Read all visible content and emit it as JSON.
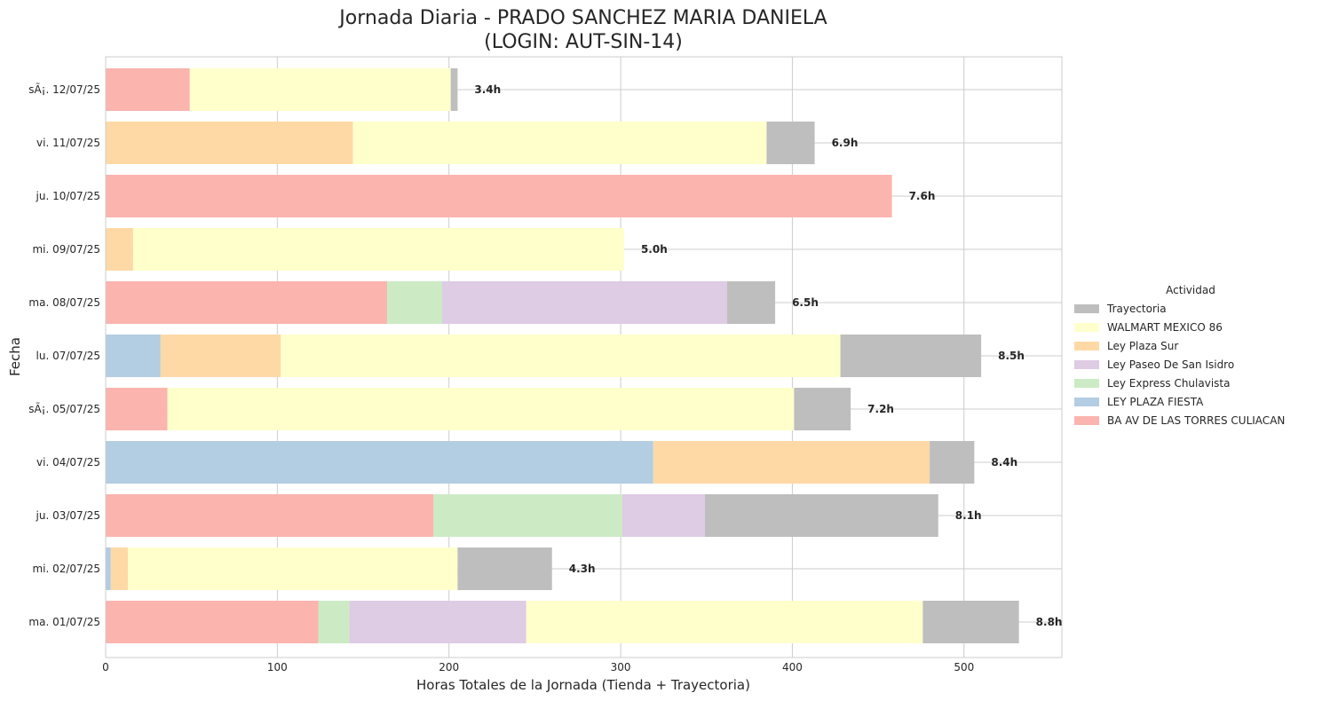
{
  "chart_data": {
    "type": "bar",
    "orientation": "horizontal",
    "stacked": true,
    "title_line1": "Jornada Diaria - PRADO SANCHEZ MARIA DANIELA",
    "title_line2": "(LOGIN: AUT-SIN-14)",
    "xlabel": "Horas Totales de la Jornada (Tienda + Trayectoria)",
    "ylabel": "Fecha",
    "xlim": [
      0,
      557
    ],
    "xticks": [
      0,
      100,
      200,
      300,
      400,
      500
    ],
    "grid": true,
    "legend_position": "right",
    "legend_title": "Actividad",
    "categories": [
      "ma. 01/07/25",
      "mi. 02/07/25",
      "ju. 03/07/25",
      "vi. 04/07/25",
      "sÃ¡. 05/07/25",
      "lu. 07/07/25",
      "ma. 08/07/25",
      "mi. 09/07/25",
      "ju. 10/07/25",
      "vi. 11/07/25",
      "sÃ¡. 12/07/25"
    ],
    "totals_labels": [
      "8.8h",
      "4.3h",
      "8.1h",
      "8.4h",
      "7.2h",
      "8.5h",
      "6.5h",
      "5.0h",
      "7.6h",
      "6.9h",
      "3.4h"
    ],
    "series": [
      {
        "name": "BA AV DE LAS TORRES CULIACAN",
        "color": "#fbb4ae",
        "values": [
          124,
          0,
          191,
          0,
          36,
          0,
          164,
          0,
          458,
          0,
          49
        ]
      },
      {
        "name": "LEY PLAZA FIESTA",
        "color": "#b3cde3",
        "values": [
          0,
          3,
          0,
          319,
          0,
          32,
          0,
          0,
          0,
          0,
          0
        ]
      },
      {
        "name": "Ley Express Chulavista",
        "color": "#ccebc5",
        "values": [
          18,
          0,
          110,
          0,
          0,
          0,
          32,
          0,
          0,
          0,
          0
        ]
      },
      {
        "name": "Ley Paseo De San Isidro",
        "color": "#decbe4",
        "values": [
          103,
          0,
          48,
          0,
          0,
          0,
          166,
          0,
          0,
          0,
          0
        ]
      },
      {
        "name": "Ley Plaza Sur",
        "color": "#fed9a6",
        "values": [
          0,
          10,
          0,
          161,
          0,
          70,
          0,
          16,
          0,
          144,
          0
        ]
      },
      {
        "name": "WALMART MEXICO 86",
        "color": "#ffffcc",
        "values": [
          231,
          192,
          0,
          0,
          365,
          326,
          0,
          286,
          0,
          241,
          152
        ]
      },
      {
        "name": "Trayectoria",
        "color": "#bebebe",
        "values": [
          56,
          55,
          136,
          26,
          33,
          82,
          28,
          0,
          0,
          28,
          4
        ]
      }
    ],
    "legend_order": [
      "Trayectoria",
      "WALMART MEXICO 86",
      "Ley Plaza Sur",
      "Ley Paseo De San Isidro",
      "Ley Express Chulavista",
      "LEY PLAZA FIESTA",
      "BA AV DE LAS TORRES CULIACAN"
    ]
  }
}
